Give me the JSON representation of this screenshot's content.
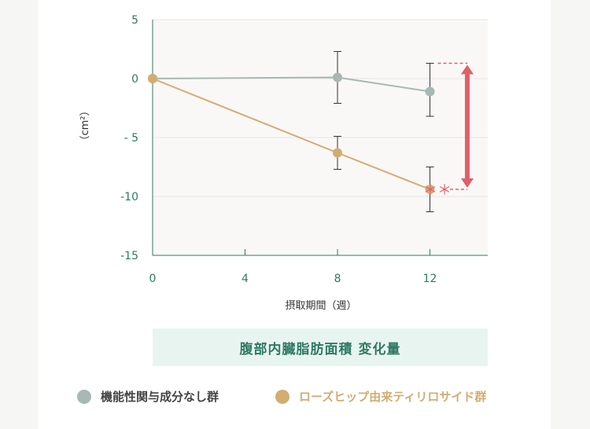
{
  "chart_data": {
    "type": "line",
    "title": "腹部内臓脂肪面積 変化量",
    "xlabel": "摂取期間（週）",
    "ylabel": "（cm²）",
    "x": [
      0,
      8,
      12
    ],
    "x_ticks": [
      "0",
      "4",
      "8",
      "12"
    ],
    "y_ticks": [
      "5",
      "0",
      "- 5",
      "-10",
      "-15"
    ],
    "xlim": [
      0,
      14.5
    ],
    "ylim": [
      -15,
      5
    ],
    "series": [
      {
        "name": "機能性関与成分なし群",
        "color": "#a8b8b5",
        "values": [
          0,
          0.1,
          -1.1
        ],
        "error_upper": [
          0,
          2.3,
          1.3
        ],
        "error_lower": [
          0,
          -2.1,
          -3.2
        ]
      },
      {
        "name": "ローズヒップ由来ティリロサイド群",
        "color": "#d2ad72",
        "values": [
          0,
          -6.3,
          -9.4
        ],
        "error_upper": [
          0,
          -4.9,
          -7.5
        ],
        "error_lower": [
          0,
          -7.7,
          -11.3
        ]
      }
    ],
    "annotation": {
      "significance": "＊＊",
      "color": "#e0606a"
    },
    "grid": "horizontal",
    "legend_position": "bottom"
  }
}
